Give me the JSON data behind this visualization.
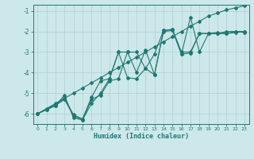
{
  "xlabel": "Humidex (Indice chaleur)",
  "background_color": "#cde8ea",
  "grid_color": "#aecfd2",
  "line_color": "#1f7872",
  "xlim": [
    -0.5,
    23.5
  ],
  "ylim": [
    -6.5,
    -0.7
  ],
  "yticks": [
    -6,
    -5,
    -4,
    -3,
    -2,
    -1
  ],
  "xticks": [
    0,
    1,
    2,
    3,
    4,
    5,
    6,
    7,
    8,
    9,
    10,
    11,
    12,
    13,
    14,
    15,
    16,
    17,
    18,
    19,
    20,
    21,
    22,
    23
  ],
  "line1_x": [
    0,
    1,
    2,
    3,
    4,
    5,
    6,
    7,
    8,
    9,
    10,
    11,
    12,
    13,
    14,
    15,
    16,
    17,
    18,
    19,
    20,
    21,
    22,
    23
  ],
  "line1_y": [
    -6.0,
    -5.75,
    -5.5,
    -5.25,
    -5.0,
    -4.75,
    -4.5,
    -4.25,
    -4.0,
    -3.75,
    -3.5,
    -3.25,
    -3.0,
    -2.75,
    -2.5,
    -2.25,
    -2.0,
    -1.75,
    -1.5,
    -1.25,
    -1.1,
    -0.95,
    -0.85,
    -0.75
  ],
  "line2_x": [
    0,
    1,
    2,
    3,
    4,
    5,
    6,
    7,
    8,
    9,
    10,
    11,
    12,
    13,
    14,
    15,
    16,
    17,
    18,
    19,
    20,
    21,
    22,
    23
  ],
  "line2_y": [
    -6.0,
    -5.8,
    -5.6,
    -5.3,
    -6.1,
    -6.3,
    -5.3,
    -5.1,
    -4.4,
    -4.3,
    -3.0,
    -3.0,
    -3.8,
    -4.1,
    -2.0,
    -1.95,
    -3.1,
    -3.05,
    -2.1,
    -2.1,
    -2.1,
    -2.1,
    -2.05,
    -2.0
  ],
  "line3_x": [
    0,
    2,
    3,
    4,
    5,
    6,
    7,
    8,
    9,
    10,
    11,
    12,
    13,
    14,
    15,
    16,
    17,
    18,
    19,
    20,
    21,
    22,
    23
  ],
  "line3_y": [
    -6.0,
    -5.55,
    -5.25,
    -6.05,
    -6.25,
    -5.2,
    -4.4,
    -4.3,
    -3.0,
    -4.25,
    -4.3,
    -3.8,
    -3.1,
    -1.95,
    -1.9,
    -3.0,
    -3.0,
    -2.1,
    -2.1,
    -2.1,
    -2.0,
    -2.0,
    -2.05
  ],
  "line4_x": [
    0,
    1,
    2,
    3,
    4,
    5,
    6,
    7,
    8,
    9,
    10,
    11,
    12,
    13,
    14,
    15,
    16,
    17,
    18,
    19,
    20,
    21,
    22,
    23
  ],
  "line4_y": [
    -6.0,
    -5.8,
    -5.6,
    -5.1,
    -6.2,
    -6.3,
    -5.5,
    -5.0,
    -4.3,
    -3.0,
    -3.0,
    -4.0,
    -2.9,
    -4.1,
    -1.95,
    -1.9,
    -3.1,
    -1.3,
    -3.0,
    -2.1,
    -2.05,
    -2.1,
    -2.0,
    -2.0
  ]
}
